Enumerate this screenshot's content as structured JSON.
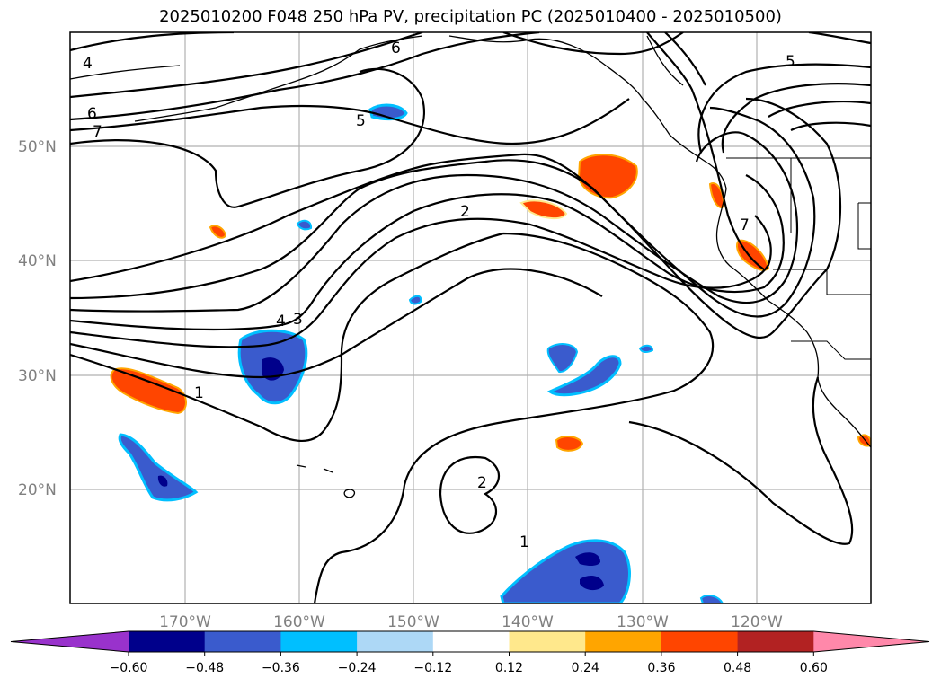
{
  "title": "2025010200 F048 250 hPa PV, precipitation PC (2025010400 - 2025010500)",
  "map": {
    "lat_ticks": [
      "50°N",
      "40°N",
      "30°N",
      "20°N"
    ],
    "lon_ticks": [
      "170°W",
      "160°W",
      "150°W",
      "140°W",
      "130°W",
      "120°W"
    ],
    "contour_labels": [
      "4",
      "6",
      "7",
      "5",
      "6",
      "2",
      "4",
      "3",
      "1",
      "2",
      "1",
      "5",
      "7"
    ],
    "gridline_color": "#b0b0b0",
    "coastline_color": "#000000"
  },
  "colorbar": {
    "extend": "both",
    "tick_labels": [
      "-0.60",
      "-0.48",
      "-0.36",
      "-0.24",
      "-0.12",
      "0.12",
      "0.24",
      "0.36",
      "0.48",
      "0.60"
    ],
    "colors": [
      "#9932cc",
      "#00008b",
      "#3a5bcd",
      "#00bfff",
      "#add8f6",
      "#ffffff",
      "#ffe88c",
      "#ffa500",
      "#ff4500",
      "#b22222",
      "#ff88aa"
    ]
  }
}
